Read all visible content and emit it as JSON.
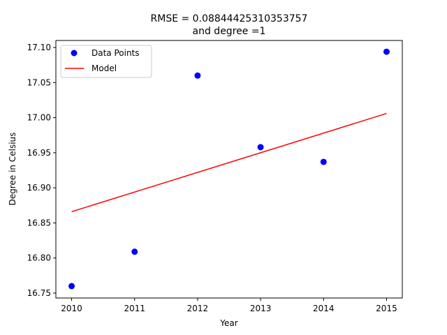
{
  "chart_data": {
    "type": "scatter",
    "title_line1": "RMSE = 0.08844425310353757",
    "title_line2": "and degree =1",
    "xlabel": "Year",
    "ylabel": "Degree in Celsius",
    "xlim": [
      2009.75,
      2015.25
    ],
    "ylim": [
      16.743,
      17.11
    ],
    "x_ticks": [
      2010,
      2011,
      2012,
      2013,
      2014,
      2015
    ],
    "y_ticks": [
      16.75,
      16.8,
      16.85,
      16.9,
      16.95,
      17.0,
      17.05,
      17.1
    ],
    "y_tick_labels": [
      "16.75",
      "16.80",
      "16.85",
      "16.90",
      "16.95",
      "17.00",
      "17.05",
      "17.10"
    ],
    "grid": false,
    "legend_position": "top-left",
    "series": [
      {
        "name": "Data Points",
        "kind": "scatter",
        "color": "#0000ff",
        "x": [
          2010,
          2011,
          2012,
          2013,
          2014,
          2015
        ],
        "y": [
          16.76,
          16.809,
          17.06,
          16.958,
          16.937,
          17.094
        ]
      },
      {
        "name": "Model",
        "kind": "line",
        "color": "#ff0000",
        "x": [
          2010,
          2015
        ],
        "y": [
          16.866,
          17.006
        ]
      }
    ]
  }
}
